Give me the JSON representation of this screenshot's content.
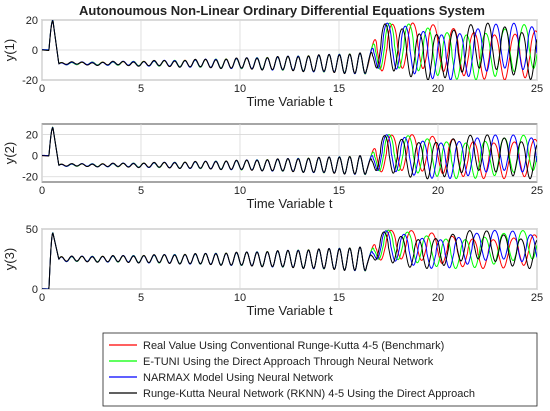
{
  "chart_data": {
    "type": "line",
    "title": "Autonoumous Non-Linear Ordinary Differential Equations System",
    "xlim": [
      0,
      25
    ],
    "xticks": [
      "0",
      "5",
      "10",
      "15",
      "20",
      "25"
    ],
    "grid": true,
    "legend_position": "bottom",
    "panels": [
      {
        "ylabel": "y(1)",
        "xlabel": "Time Variable t",
        "ylim": [
          -20,
          20
        ],
        "yticks": [
          "20",
          "0",
          "-20"
        ],
        "baseline": -9,
        "osc_amp_start": 0.7,
        "osc_amp_end": 7,
        "peak": 20,
        "chaos_amp": 15
      },
      {
        "ylabel": "y(2)",
        "xlabel": "Time Variable t",
        "ylim": [
          -25,
          30
        ],
        "yticks": [
          "20",
          "0",
          "-20"
        ],
        "baseline": -9,
        "osc_amp_start": 1,
        "osc_amp_end": 9,
        "peak": 27,
        "chaos_amp": 17
      },
      {
        "ylabel": "y(3)",
        "xlabel": "Time Variable t",
        "ylim": [
          0,
          50
        ],
        "yticks": [
          "50",
          "0"
        ],
        "baseline": 25,
        "osc_amp_start": 2,
        "osc_amp_end": 10,
        "peak": 47,
        "chaos_amp": 12
      }
    ],
    "series": [
      {
        "name": "Real Value Using Conventional Runge-Kutta 4-5 (Benchmark)",
        "color": "#ff0000"
      },
      {
        "name": "E-TUNI Using the Direct Approach Through Neural Network",
        "color": "#00ff00"
      },
      {
        "name": "NARMAX Model Using Neural Network",
        "color": "#0000ff"
      },
      {
        "name": "Runge-Kutta Neural Network (RKNN) 4-5 Using the Direct Approach",
        "color": "#000000"
      }
    ]
  }
}
